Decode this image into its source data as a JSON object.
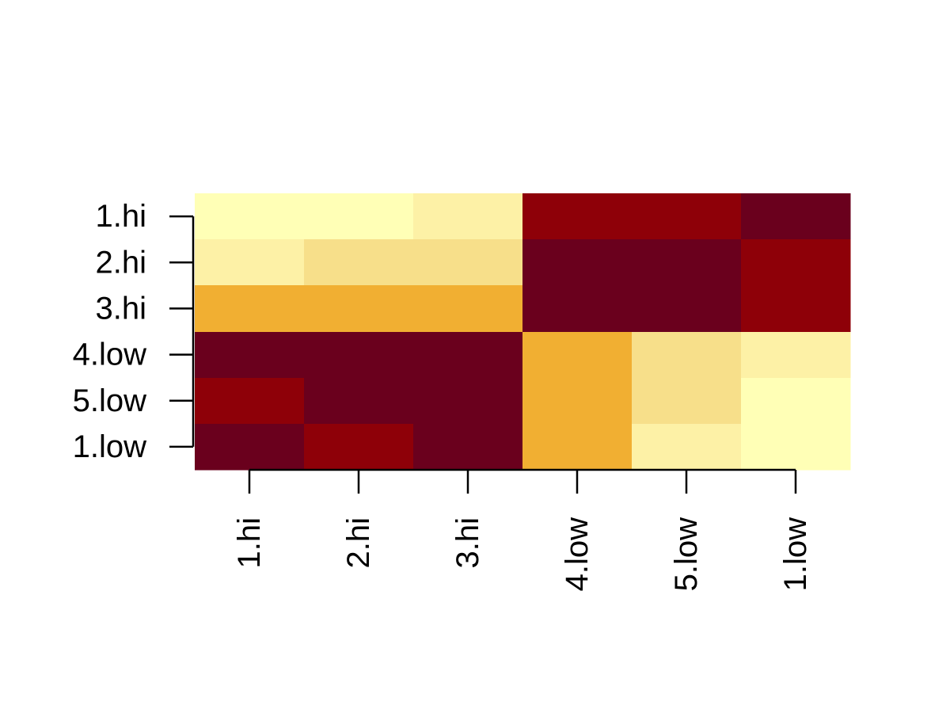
{
  "chart_data": {
    "type": "heatmap",
    "title": "",
    "xlabel": "",
    "ylabel": "",
    "x_categories": [
      "1.hi",
      "2.hi",
      "3.hi",
      "4.low",
      "5.low",
      "1.low"
    ],
    "y_categories": [
      "1.hi",
      "2.hi",
      "3.hi",
      "4.low",
      "5.low",
      "1.low"
    ],
    "value_scale": [
      1,
      2,
      3,
      4,
      5,
      6
    ],
    "color_scale": [
      "#FFFFB6",
      "#FDF1A6",
      "#F7DF8A",
      "#F1AF32",
      "#8E0008",
      "#6A001D"
    ],
    "values": [
      [
        1,
        1,
        2,
        5,
        5,
        6
      ],
      [
        2,
        3,
        3,
        6,
        6,
        5
      ],
      [
        4,
        4,
        4,
        6,
        6,
        5
      ],
      [
        6,
        6,
        6,
        4,
        3,
        2
      ],
      [
        5,
        6,
        6,
        4,
        3,
        1
      ],
      [
        6,
        5,
        6,
        4,
        2,
        1
      ]
    ],
    "grid": false,
    "legend": "none"
  }
}
